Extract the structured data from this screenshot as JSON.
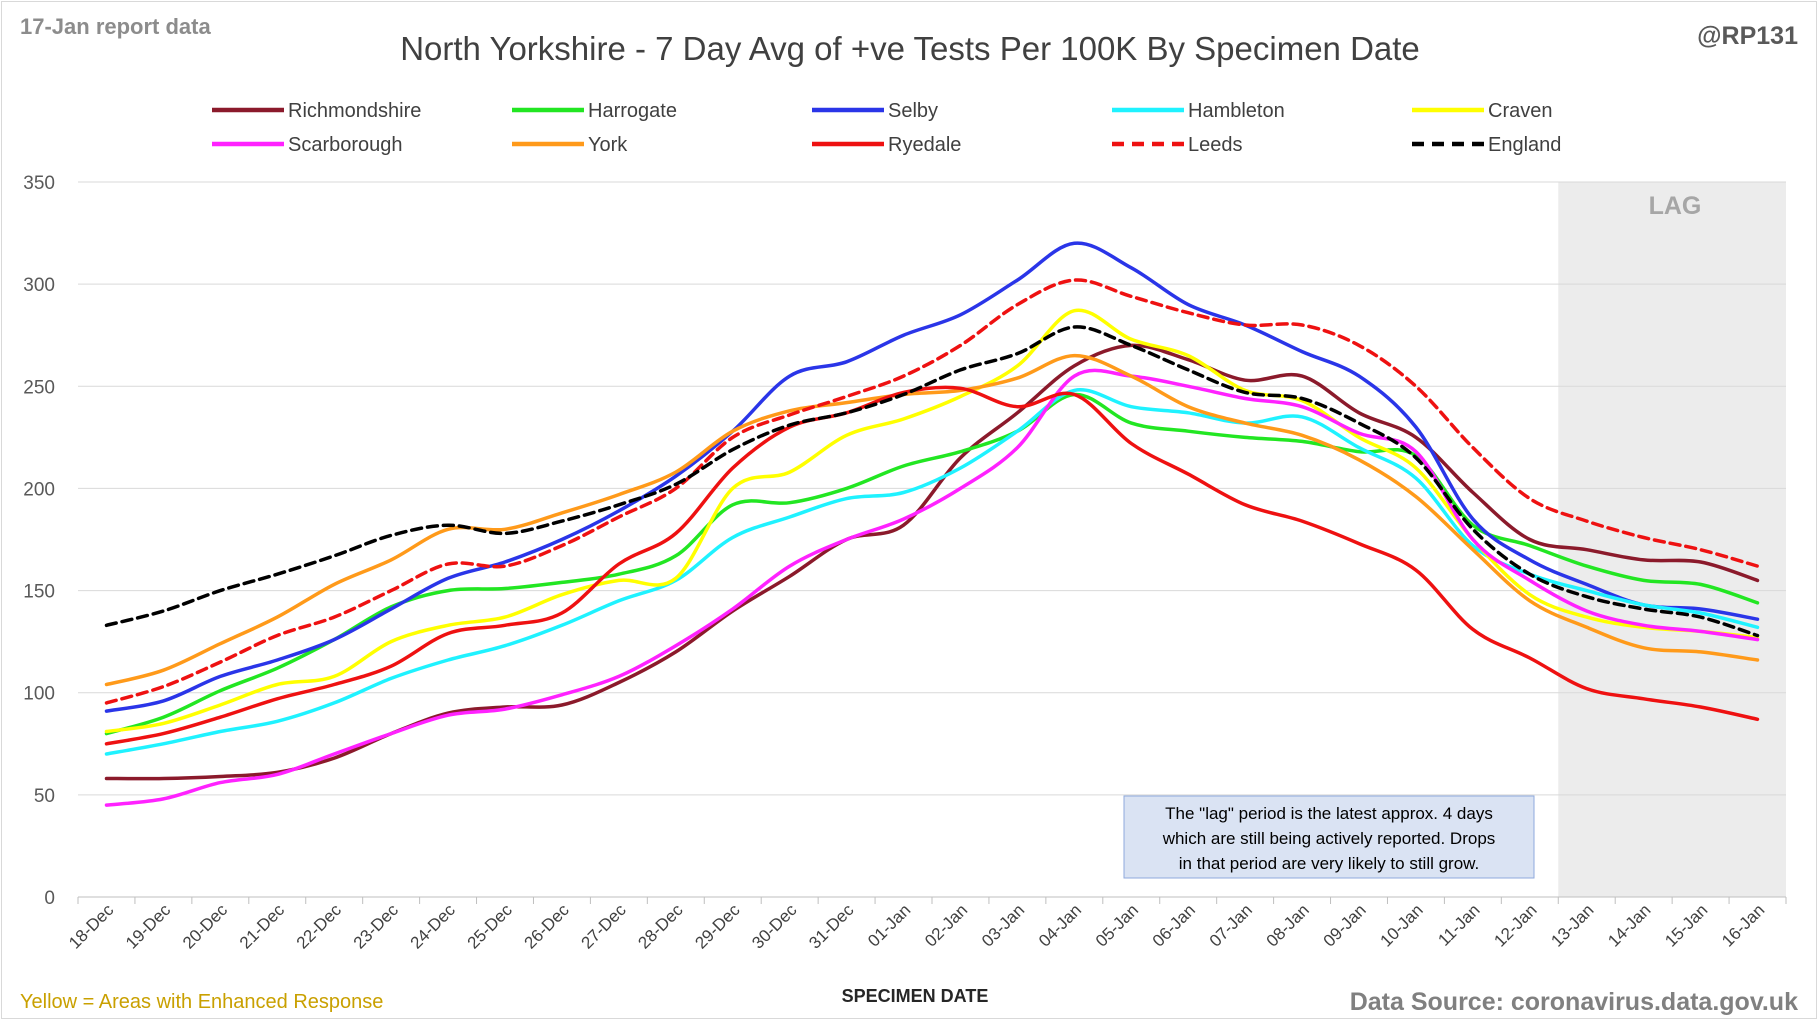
{
  "header": {
    "report_date": "17-Jan report data",
    "title": "North Yorkshire - 7 Day Avg of +ve Tests Per 100K By Specimen Date",
    "handle": "@RP131"
  },
  "footer": {
    "note": "Yellow = Areas with Enhanced Response",
    "source": "Data Source: coronavirus.data.gov.uk"
  },
  "annotation": {
    "lag_label": "LAG",
    "lines": [
      "The \"lag\" period is the latest approx. 4 days",
      "which are still being actively reported.  Drops",
      "in that period are very likely to still grow."
    ]
  },
  "colors": {
    "note_text": "#c9a000",
    "source_text": "#808080",
    "lag_fill": "#ececec",
    "grid": "#d9d9d9",
    "annotation_fill": "#dae3f3",
    "annotation_border": "#8faadc"
  },
  "chart_data": {
    "type": "line",
    "title": "North Yorkshire - 7 Day Avg of +ve Tests Per 100K By Specimen Date",
    "xlabel": "SPECIMEN DATE",
    "ylabel": "",
    "ylim": [
      0,
      350
    ],
    "yticks": [
      0,
      50,
      100,
      150,
      200,
      250,
      300,
      350
    ],
    "grid": true,
    "legend_position": "top",
    "lag_region": [
      "13-Jan",
      "16-Jan"
    ],
    "categories": [
      "18-Dec",
      "19-Dec",
      "20-Dec",
      "21-Dec",
      "22-Dec",
      "23-Dec",
      "24-Dec",
      "25-Dec",
      "26-Dec",
      "27-Dec",
      "28-Dec",
      "29-Dec",
      "30-Dec",
      "31-Dec",
      "01-Jan",
      "02-Jan",
      "03-Jan",
      "04-Jan",
      "05-Jan",
      "06-Jan",
      "07-Jan",
      "08-Jan",
      "09-Jan",
      "10-Jan",
      "11-Jan",
      "12-Jan",
      "13-Jan",
      "14-Jan",
      "15-Jan",
      "16-Jan"
    ],
    "series": [
      {
        "name": "Richmondshire",
        "color": "#8b1a2b",
        "dash": false,
        "values": [
          58,
          58,
          59,
          61,
          68,
          80,
          90,
          93,
          94,
          105,
          120,
          140,
          157,
          175,
          182,
          215,
          237,
          260,
          270,
          263,
          253,
          255,
          237,
          225,
          198,
          175,
          170,
          165,
          164,
          155
        ]
      },
      {
        "name": "Harrogate",
        "color": "#22e622",
        "dash": false,
        "values": [
          80,
          88,
          101,
          112,
          126,
          142,
          150,
          151,
          154,
          158,
          167,
          192,
          193,
          200,
          211,
          218,
          228,
          246,
          232,
          228,
          225,
          223,
          218,
          216,
          182,
          172,
          162,
          155,
          153,
          144
        ]
      },
      {
        "name": "Selby",
        "color": "#2a35e8",
        "dash": false,
        "values": [
          91,
          96,
          108,
          116,
          126,
          141,
          156,
          164,
          175,
          189,
          206,
          228,
          255,
          262,
          275,
          285,
          302,
          320,
          308,
          290,
          280,
          267,
          255,
          230,
          185,
          165,
          153,
          143,
          141,
          136
        ]
      },
      {
        "name": "Hambleton",
        "color": "#1ff2ff",
        "dash": false,
        "values": [
          70,
          75,
          81,
          86,
          95,
          107,
          116,
          123,
          133,
          145,
          155,
          176,
          186,
          195,
          198,
          210,
          228,
          248,
          240,
          237,
          232,
          235,
          220,
          205,
          172,
          158,
          150,
          143,
          139,
          132
        ]
      },
      {
        "name": "Craven",
        "color": "#ffff00",
        "dash": false,
        "values": [
          81,
          85,
          94,
          104,
          108,
          125,
          133,
          137,
          148,
          155,
          156,
          200,
          208,
          226,
          234,
          245,
          260,
          287,
          273,
          265,
          248,
          243,
          225,
          210,
          175,
          148,
          137,
          132,
          130,
          127
        ]
      },
      {
        "name": "Scarborough",
        "color": "#ff22ff",
        "dash": false,
        "values": [
          45,
          48,
          56,
          60,
          70,
          80,
          89,
          92,
          99,
          108,
          123,
          141,
          162,
          175,
          185,
          200,
          220,
          255,
          255,
          250,
          244,
          240,
          227,
          218,
          175,
          155,
          140,
          133,
          130,
          126
        ]
      },
      {
        "name": "York",
        "color": "#ff9a1a",
        "dash": false,
        "values": [
          104,
          111,
          124,
          137,
          153,
          165,
          180,
          180,
          188,
          197,
          208,
          228,
          238,
          242,
          246,
          248,
          254,
          265,
          255,
          240,
          232,
          226,
          214,
          196,
          170,
          145,
          132,
          122,
          120,
          116
        ]
      },
      {
        "name": "Ryedale",
        "color": "#ee1111",
        "dash": false,
        "values": [
          75,
          80,
          88,
          97,
          104,
          113,
          129,
          133,
          139,
          163,
          178,
          210,
          230,
          237,
          247,
          249,
          240,
          246,
          222,
          207,
          192,
          184,
          173,
          160,
          131,
          117,
          102,
          97,
          93,
          87
        ]
      },
      {
        "name": "Leeds",
        "color": "#ee1111",
        "dash": true,
        "values": [
          95,
          103,
          115,
          128,
          137,
          150,
          163,
          162,
          172,
          186,
          200,
          225,
          236,
          245,
          255,
          270,
          290,
          302,
          294,
          286,
          280,
          280,
          270,
          250,
          220,
          195,
          184,
          176,
          170,
          162
        ]
      },
      {
        "name": "England",
        "color": "#000000",
        "dash": true,
        "values": [
          133,
          140,
          150,
          158,
          167,
          177,
          182,
          178,
          184,
          192,
          202,
          219,
          231,
          237,
          246,
          258,
          266,
          279,
          270,
          258,
          247,
          244,
          232,
          215,
          180,
          158,
          147,
          141,
          137,
          128
        ]
      }
    ]
  }
}
